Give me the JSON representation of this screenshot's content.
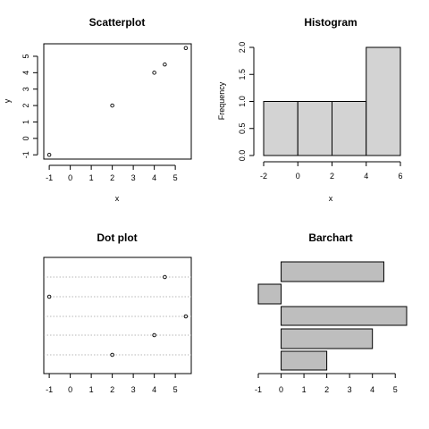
{
  "chart_data": [
    {
      "type": "scatter",
      "title": "Scatterplot",
      "xlabel": "x",
      "ylabel": "y",
      "xlim": [
        -1.26,
        5.76
      ],
      "ylim": [
        -1.26,
        5.76
      ],
      "xticks": [
        -1,
        0,
        1,
        2,
        3,
        4,
        5
      ],
      "yticks": [
        -1,
        0,
        1,
        2,
        3,
        4,
        5
      ],
      "x": [
        -1,
        2,
        4,
        4.5,
        5.5
      ],
      "y": [
        -1,
        2,
        4,
        4.5,
        5.5
      ],
      "grid": false
    },
    {
      "type": "bar",
      "subtype": "histogram",
      "title": "Histogram",
      "xlabel": "x",
      "ylabel": "Frequency",
      "bin_edges": [
        -2,
        0,
        2,
        4,
        6
      ],
      "counts": [
        1,
        1,
        1,
        2
      ],
      "xlim": [
        -2,
        6
      ],
      "ylim": [
        0,
        2
      ],
      "xticks": [
        -2,
        0,
        2,
        4,
        6
      ],
      "yticks": [
        0.0,
        0.5,
        1.0,
        1.5,
        2.0
      ],
      "ytick_labels": [
        "0.0",
        "0.5",
        "1.0",
        "1.5",
        "2.0"
      ],
      "bar_color": "#d3d3d3"
    },
    {
      "type": "scatter",
      "subtype": "dotchart",
      "title": "Dot plot",
      "values_top_to_bottom": [
        4.5,
        -1,
        5.5,
        4,
        2
      ],
      "xlim": [
        -1.26,
        5.76
      ],
      "xticks": [
        -1,
        0,
        1,
        2,
        3,
        4,
        5
      ],
      "grid": true
    },
    {
      "type": "bar",
      "orientation": "horizontal",
      "title": "Barchart",
      "values_top_to_bottom": [
        4.5,
        -1,
        5.5,
        4,
        2
      ],
      "xlim": [
        -1,
        5.5
      ],
      "xticks": [
        -1,
        0,
        1,
        2,
        3,
        4,
        5
      ],
      "bar_color": "#bebebe"
    }
  ]
}
